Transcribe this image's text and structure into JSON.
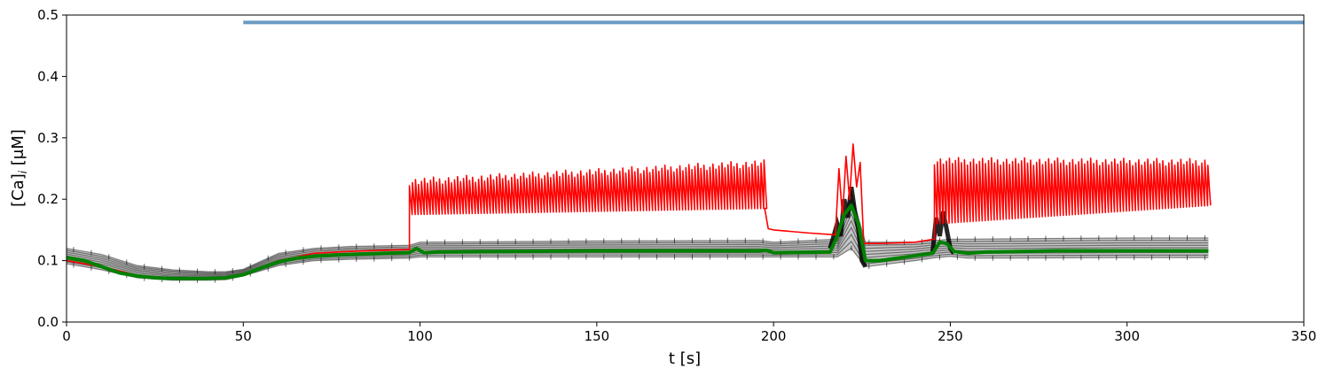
{
  "chart_data": {
    "type": "line",
    "title": "",
    "xlabel": "t [s]",
    "ylabel_main": "[Ca]",
    "ylabel_sub": "i",
    "ylabel_unit": " [μM]",
    "xlim": [
      0,
      350
    ],
    "ylim": [
      0,
      0.5
    ],
    "xticks": [
      0,
      50,
      100,
      150,
      200,
      250,
      300,
      350
    ],
    "yticks": [
      0.0,
      0.1,
      0.2,
      0.3,
      0.4,
      0.5
    ],
    "ytick_labels": [
      "0.0",
      "0.1",
      "0.2",
      "0.3",
      "0.4",
      "0.5"
    ],
    "grid": false,
    "legend": "none",
    "colors": {
      "stimulus": "#6a9bc3",
      "highlight": "#ff0000",
      "mean": "#008000",
      "ensemble": "#000000"
    },
    "stimulus_bar": {
      "x": [
        50,
        350
      ],
      "y": 0.488
    },
    "mean_trace": {
      "x": [
        0,
        5,
        10,
        15,
        20,
        25,
        30,
        35,
        40,
        45,
        50,
        55,
        60,
        65,
        70,
        75,
        80,
        85,
        90,
        97,
        99,
        101,
        105,
        150,
        196,
        198,
        200,
        216,
        218,
        220,
        222,
        224,
        226,
        230,
        240,
        245,
        247,
        249,
        251,
        255,
        260,
        280,
        300,
        323
      ],
      "y": [
        0.105,
        0.1,
        0.09,
        0.08,
        0.075,
        0.072,
        0.071,
        0.071,
        0.071,
        0.072,
        0.077,
        0.088,
        0.098,
        0.104,
        0.107,
        0.109,
        0.11,
        0.111,
        0.112,
        0.113,
        0.12,
        0.113,
        0.114,
        0.116,
        0.116,
        0.117,
        0.113,
        0.114,
        0.14,
        0.175,
        0.19,
        0.16,
        0.1,
        0.1,
        0.108,
        0.112,
        0.13,
        0.128,
        0.115,
        0.112,
        0.114,
        0.116,
        0.116,
        0.116
      ]
    },
    "ensemble_band": {
      "x": [
        0,
        10,
        20,
        30,
        40,
        45,
        50,
        60,
        70,
        80,
        97,
        100,
        150,
        196,
        200,
        218,
        222,
        226,
        240,
        246,
        250,
        255,
        300,
        323
      ],
      "lower": [
        0.095,
        0.085,
        0.072,
        0.068,
        0.068,
        0.069,
        0.075,
        0.092,
        0.1,
        0.102,
        0.104,
        0.106,
        0.106,
        0.106,
        0.106,
        0.106,
        0.12,
        0.09,
        0.1,
        0.105,
        0.107,
        0.104,
        0.105,
        0.105
      ],
      "upper": [
        0.12,
        0.11,
        0.092,
        0.085,
        0.082,
        0.082,
        0.086,
        0.112,
        0.12,
        0.123,
        0.125,
        0.13,
        0.132,
        0.133,
        0.13,
        0.135,
        0.21,
        0.13,
        0.13,
        0.133,
        0.135,
        0.135,
        0.137,
        0.137
      ]
    },
    "highlight_trace": {
      "baseline": {
        "x": [
          0,
          10,
          20,
          30,
          40,
          45,
          50,
          60,
          70,
          80,
          90,
          97
        ],
        "y": [
          0.1,
          0.09,
          0.076,
          0.071,
          0.071,
          0.072,
          0.077,
          0.1,
          0.112,
          0.115,
          0.117,
          0.118
        ]
      },
      "oscillation_segments": [
        {
          "x_start": 97,
          "x_end": 197.5,
          "trough_start": 0.175,
          "trough_end": 0.185,
          "peak_start": 0.228,
          "peak_end": 0.258,
          "period": 0.85
        },
        {
          "x_start": 245.5,
          "x_end": 323,
          "trough_start": 0.16,
          "trough_end": 0.19,
          "peak_start": 0.262,
          "peak_end": 0.26,
          "period": 0.85
        }
      ],
      "decay_segment": {
        "x": [
          197.5,
          198.5,
          200,
          210,
          217.5
        ],
        "y": [
          0.185,
          0.152,
          0.15,
          0.145,
          0.142
        ]
      },
      "burst_segment": {
        "x": [
          217.5,
          218.5,
          219.5,
          220.5,
          221.5,
          222.5,
          223.5,
          224.5,
          225.5
        ],
        "y": [
          0.142,
          0.25,
          0.17,
          0.27,
          0.2,
          0.29,
          0.22,
          0.26,
          0.13
        ]
      },
      "post_burst_segment": {
        "x": [
          225.5,
          230,
          240,
          245.5
        ],
        "y": [
          0.128,
          0.128,
          0.13,
          0.135
        ]
      }
    }
  }
}
